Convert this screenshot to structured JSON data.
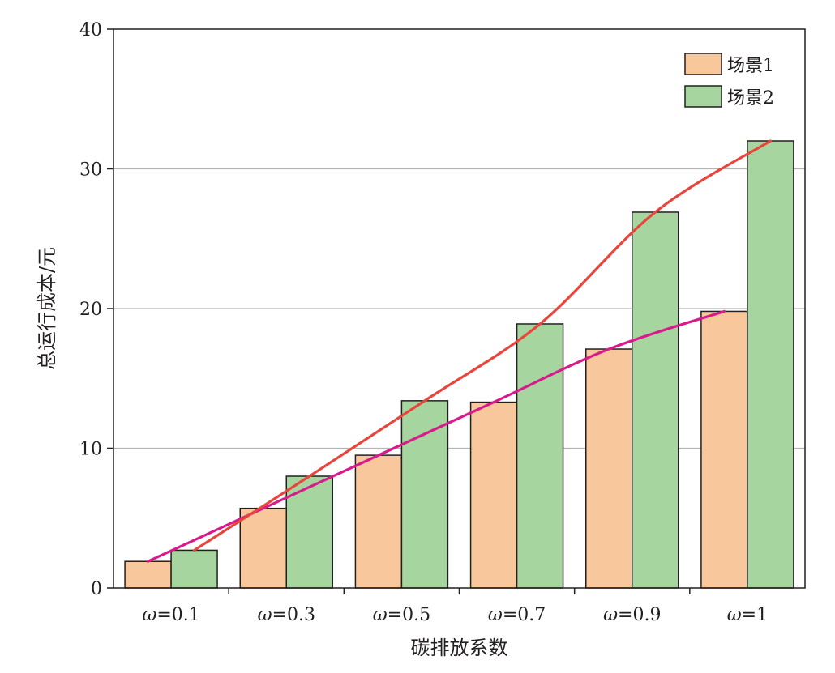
{
  "chart_data": {
    "type": "bar",
    "title": "",
    "xlabel": "碳排放系数",
    "ylabel": "总运行成本/元",
    "categories": [
      "ω=0.1",
      "ω=0.3",
      "ω=0.5",
      "ω=0.7",
      "ω=0.9",
      "ω=1"
    ],
    "category_parts": [
      {
        "sym": "ω",
        "val": "=0.1"
      },
      {
        "sym": "ω",
        "val": "=0.3"
      },
      {
        "sym": "ω",
        "val": "=0.5"
      },
      {
        "sym": "ω",
        "val": "=0.7"
      },
      {
        "sym": "ω",
        "val": "=0.9"
      },
      {
        "sym": "ω",
        "val": "=1"
      }
    ],
    "ylim": [
      0,
      40
    ],
    "yticks": [
      0,
      10,
      20,
      30,
      40
    ],
    "grid": true,
    "legend_position": "top-right",
    "series": [
      {
        "name": "场景1",
        "values": [
          1.9,
          5.7,
          9.5,
          13.3,
          17.1,
          19.8
        ],
        "color": "#f8c89c",
        "trend_color": "#d81b8c"
      },
      {
        "name": "场景2",
        "values": [
          2.7,
          8.0,
          13.4,
          18.9,
          26.9,
          32.0
        ],
        "color": "#a6d5a0",
        "trend_color": "#e8453c"
      }
    ]
  }
}
